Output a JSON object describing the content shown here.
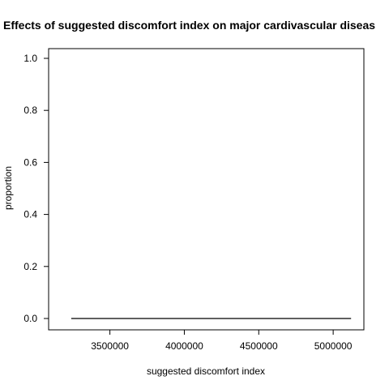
{
  "chart_data": {
    "type": "line",
    "title": "Effects of suggested discomfort index on major cardivascular diseas",
    "xlabel": "suggested discomfort index",
    "ylabel": "proportion",
    "xlim": [
      3170000,
      5130000
    ],
    "ylim": [
      0,
      1.0
    ],
    "x_ticks": [
      3500000,
      4000000,
      4500000,
      5000000
    ],
    "x_tick_labels": [
      "3500000",
      "4000000",
      "4500000",
      "5000000"
    ],
    "y_ticks": [
      0.0,
      0.2,
      0.4,
      0.6,
      0.8,
      1.0
    ],
    "y_tick_labels": [
      "0.0",
      "0.2",
      "0.4",
      "0.6",
      "0.8",
      "1.0"
    ],
    "grid": false,
    "series": [
      {
        "x": [
          3240000,
          5120000
        ],
        "y": [
          0.0,
          0.0
        ],
        "color": "#000000"
      }
    ]
  }
}
